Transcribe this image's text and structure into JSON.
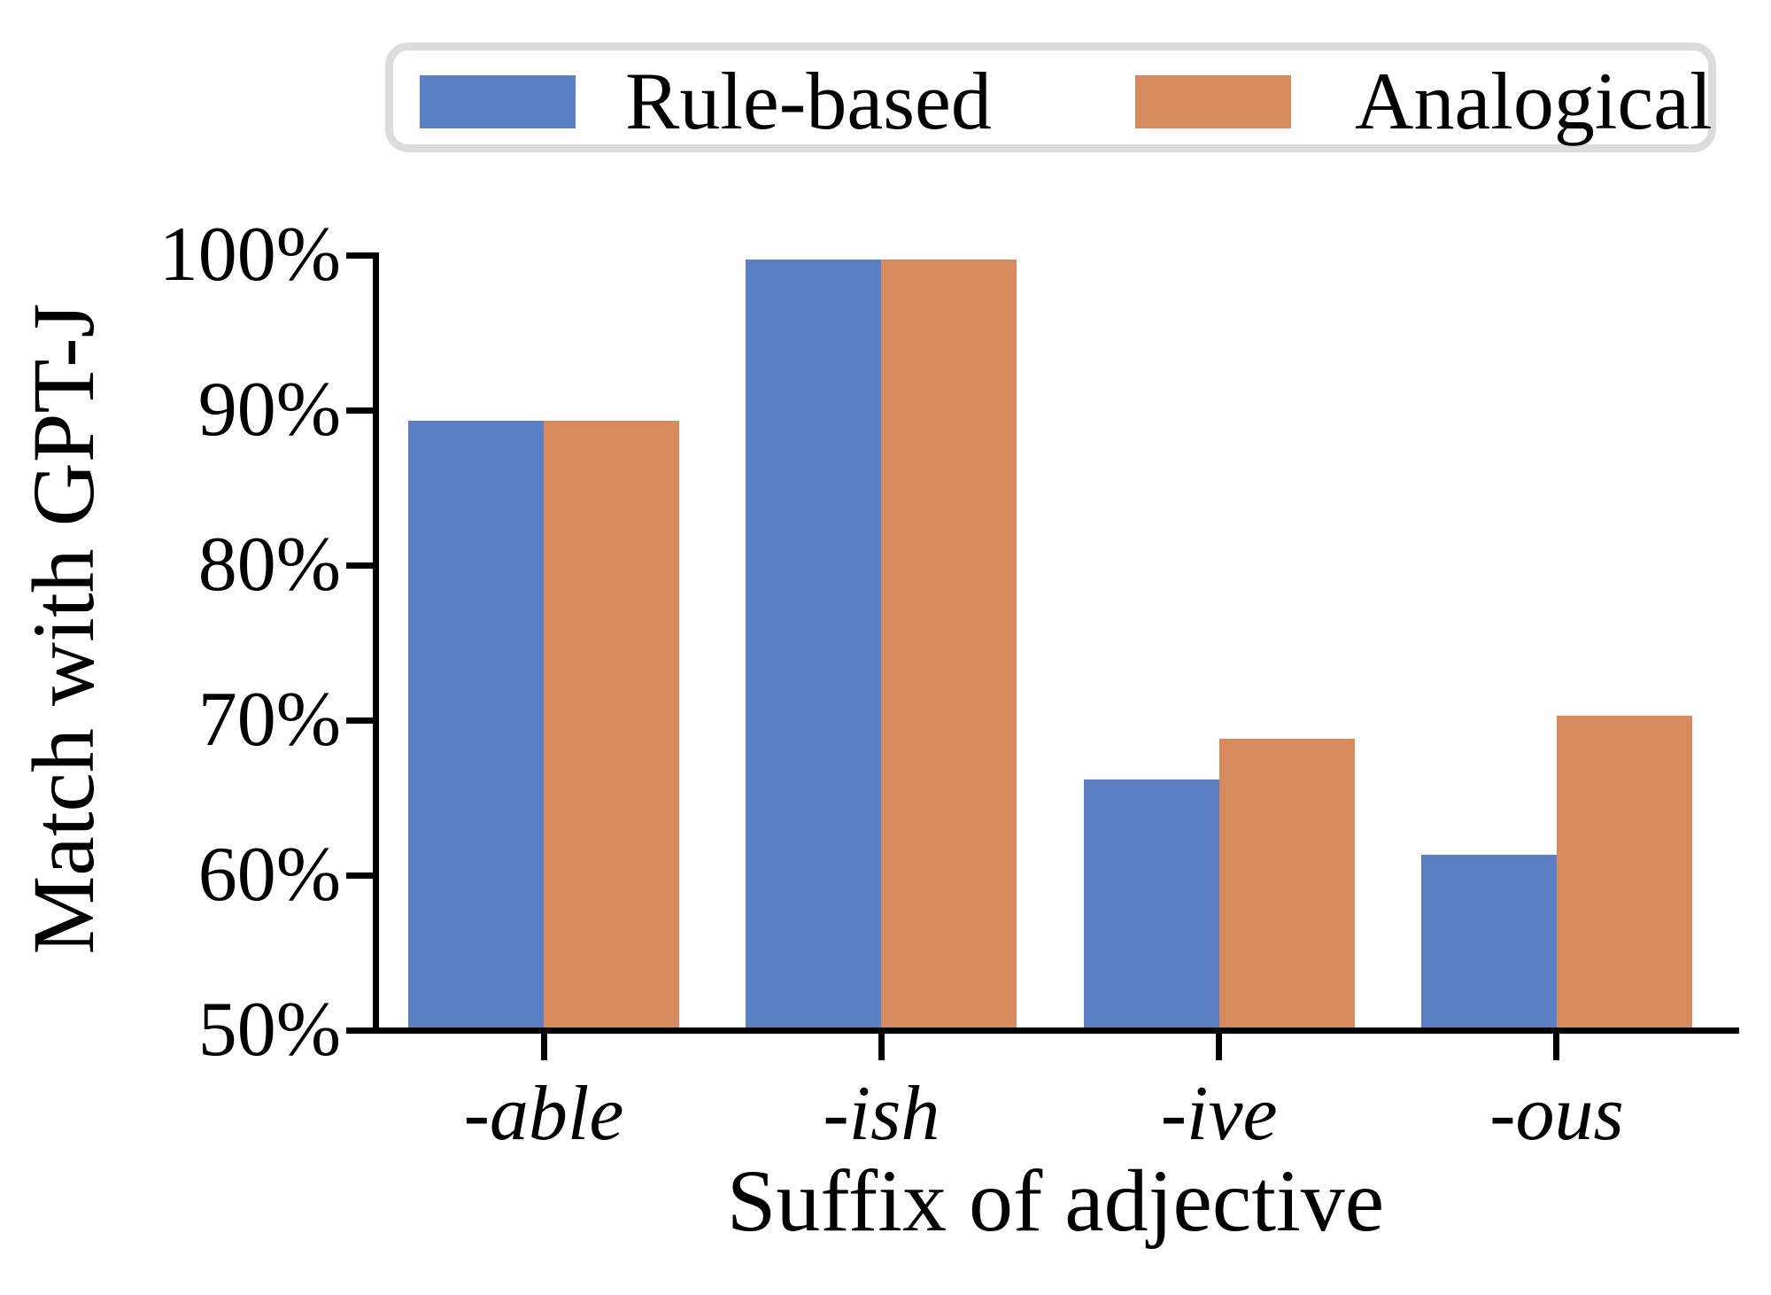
{
  "chart_data": {
    "type": "bar",
    "title": "",
    "categories": [
      "-able",
      "-ish",
      "-ive",
      "-ous"
    ],
    "series": [
      {
        "name": "Rule-based",
        "color": "#5a7fc2",
        "values": [
          89.3,
          99.7,
          66.2,
          61.3
        ]
      },
      {
        "name": "Analogical",
        "color": "#d68a5e",
        "values": [
          89.3,
          99.7,
          68.8,
          70.3
        ]
      }
    ],
    "xlabel": "Suffix of adjective",
    "ylabel": "Match with GPT-J",
    "ylim": [
      50,
      100
    ],
    "yticks": [
      {
        "value": 100,
        "label": "100%"
      },
      {
        "value": 90,
        "label": "90%"
      },
      {
        "value": 80,
        "label": "80%"
      },
      {
        "value": 70,
        "label": "70%"
      },
      {
        "value": 60,
        "label": "60%"
      },
      {
        "value": 50,
        "label": "50%"
      }
    ],
    "legend_position": "top",
    "grid": false,
    "axis_color": "#000000",
    "legend_frame_color": "#dcdcdc"
  }
}
